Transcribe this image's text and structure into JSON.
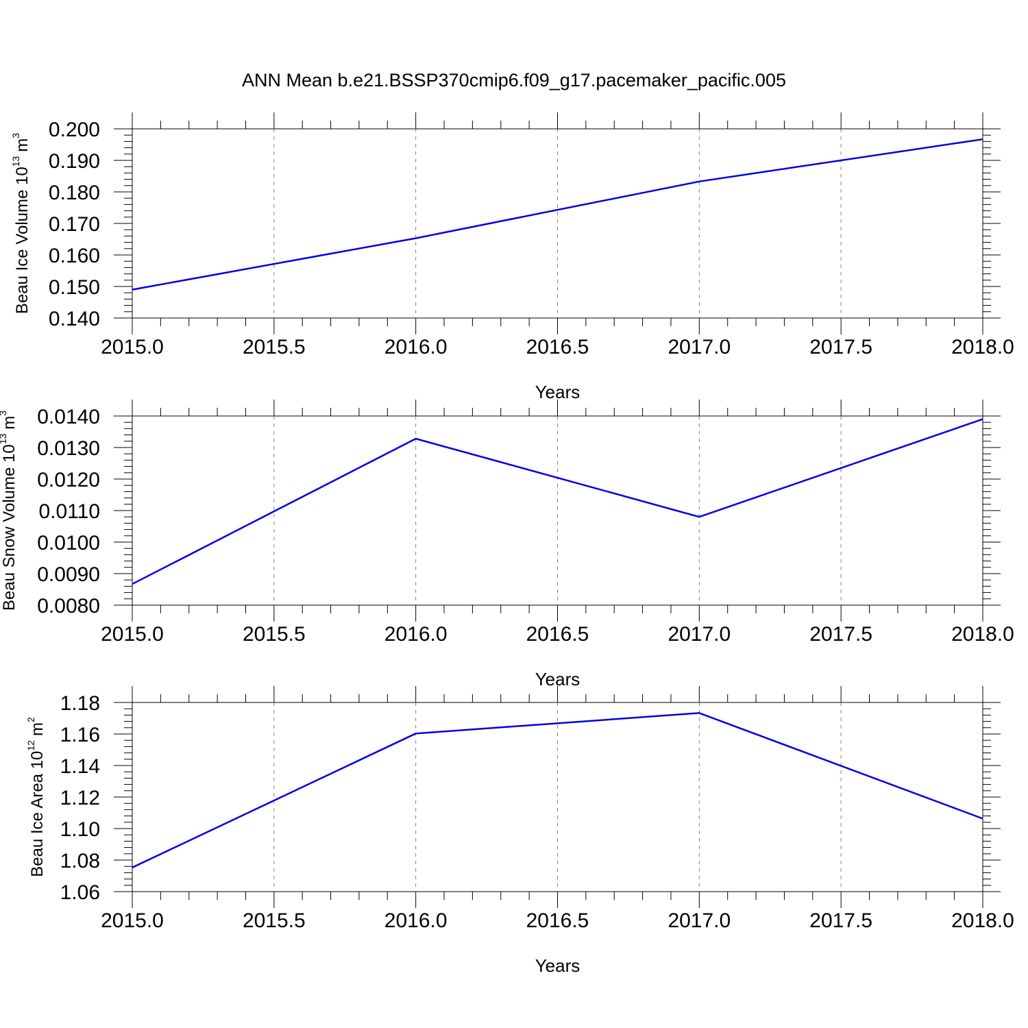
{
  "title": "ANN Mean b.e21.BSSP370cmip6.f09_g17.pacemaker_pacific.005",
  "colors": {
    "line": "#0000e6",
    "axis": "#000000",
    "grid": "#808080"
  },
  "chart_data": [
    {
      "type": "line",
      "ylabel_text": "Beau Ice Volume 10",
      "ylabel_exponent": "13",
      "ylabel_unit": "m",
      "ylabel_unit_exponent": "3",
      "xlabel": "Years",
      "x_ticks": [
        "2015.0",
        "2015.5",
        "2016.0",
        "2016.5",
        "2017.0",
        "2017.5",
        "2018.0"
      ],
      "y_ticks": [
        "0.140",
        "0.150",
        "0.160",
        "0.170",
        "0.180",
        "0.190",
        "0.200"
      ],
      "xlim": [
        2015.0,
        2018.0
      ],
      "ylim": [
        0.14,
        0.2
      ],
      "grid": "vertical dashed",
      "series": [
        {
          "x": [
            2015,
            2016,
            2017,
            2018
          ],
          "values": [
            0.149,
            0.1653,
            0.1833,
            0.1967
          ]
        }
      ]
    },
    {
      "type": "line",
      "ylabel_text": "Beau Snow Volume 10",
      "ylabel_exponent": "13",
      "ylabel_unit": "m",
      "ylabel_unit_exponent": "3",
      "xlabel": "Years",
      "x_ticks": [
        "2015.0",
        "2015.5",
        "2016.0",
        "2016.5",
        "2017.0",
        "2017.5",
        "2018.0"
      ],
      "y_ticks": [
        "0.0080",
        "0.0090",
        "0.0100",
        "0.0110",
        "0.0120",
        "0.0130",
        "0.0140"
      ],
      "xlim": [
        2015.0,
        2018.0
      ],
      "ylim": [
        0.008,
        0.014
      ],
      "grid": "vertical dashed",
      "series": [
        {
          "x": [
            2015,
            2016,
            2017,
            2018
          ],
          "values": [
            0.00867,
            0.01328,
            0.0108,
            0.0139
          ]
        }
      ]
    },
    {
      "type": "line",
      "ylabel_text": "Beau Ice Area 10",
      "ylabel_exponent": "12",
      "ylabel_unit": "m",
      "ylabel_unit_exponent": "2",
      "xlabel": "Years",
      "x_ticks": [
        "2015.0",
        "2015.5",
        "2016.0",
        "2016.5",
        "2017.0",
        "2017.5",
        "2018.0"
      ],
      "y_ticks": [
        "1.06",
        "1.08",
        "1.10",
        "1.12",
        "1.14",
        "1.16",
        "1.18"
      ],
      "xlim": [
        2015.0,
        2018.0
      ],
      "ylim": [
        1.06,
        1.18
      ],
      "grid": "vertical dashed",
      "series": [
        {
          "x": [
            2015,
            2016,
            2017,
            2018
          ],
          "values": [
            1.0753,
            1.1603,
            1.1733,
            1.1063
          ]
        }
      ]
    }
  ]
}
